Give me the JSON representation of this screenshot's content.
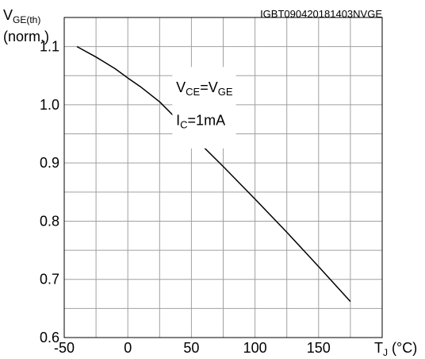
{
  "chart_data": {
    "type": "line",
    "doc_id": "IGBT090420181403NVGE",
    "ylabel_main": "V",
    "ylabel_sub": "GE(th)",
    "ylabel_line2": "(norm.)",
    "xlabel_main": "T",
    "xlabel_sub": "J",
    "xlabel_unit": " (°C)",
    "xlim": [
      -50,
      200
    ],
    "ylim": [
      0.6,
      1.15
    ],
    "x_ticks": [
      -50,
      0,
      50,
      100,
      150
    ],
    "x_tick_labels": [
      "-50",
      "0",
      "50",
      "100",
      "150"
    ],
    "y_ticks": [
      0.6,
      0.7,
      0.8,
      0.9,
      1.0,
      1.1
    ],
    "y_tick_labels": [
      "0.6",
      "0.7",
      "0.8",
      "0.9",
      "1.0",
      "1.1"
    ],
    "x_grid_step": 25,
    "y_grid_step": 0.05,
    "grid": true,
    "annotations": {
      "line1_a": "V",
      "line1_a_sub": "CE",
      "line1_b": "=V",
      "line1_b_sub": "GE",
      "line2_a": "I",
      "line2_a_sub": "C",
      "line2_b": "=1mA"
    },
    "series": [
      {
        "color": "#000000",
        "x": [
          -40,
          -25,
          -10,
          0,
          10,
          25,
          40,
          50,
          75,
          100,
          125,
          150,
          175
        ],
        "y": [
          1.1,
          1.082,
          1.062,
          1.046,
          1.031,
          1.005,
          0.972,
          0.948,
          0.894,
          0.838,
          0.781,
          0.722,
          0.662
        ]
      }
    ]
  }
}
